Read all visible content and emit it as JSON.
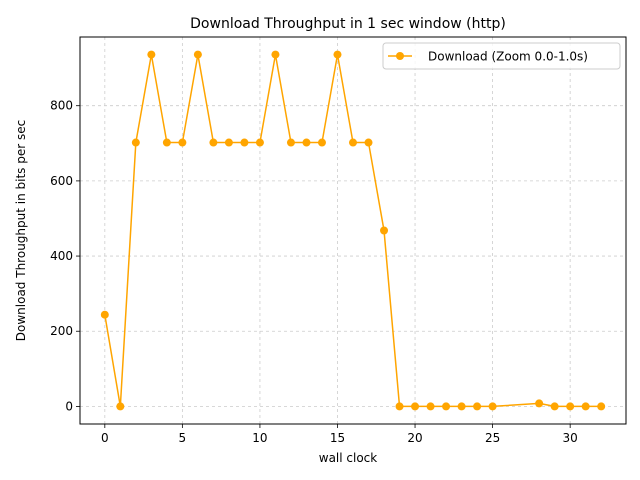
{
  "chart_data": {
    "type": "line",
    "title": "Download Throughput in 1 sec window (http)",
    "xlabel": "wall clock",
    "ylabel": "Download Throughput in bits per sec",
    "xlim": [
      -1.6,
      33.6
    ],
    "ylim": [
      -46.8,
      982.8
    ],
    "xticks": [
      0,
      5,
      10,
      15,
      20,
      25,
      30
    ],
    "yticks": [
      0,
      200,
      400,
      600,
      800
    ],
    "grid": true,
    "legend_position": "upper-right",
    "series": [
      {
        "name": "Download (Zoom 0.0-1.0s)",
        "color": "#FFA500",
        "marker": "circle",
        "x": [
          0,
          1,
          2,
          3,
          4,
          5,
          6,
          7,
          8,
          9,
          10,
          11,
          12,
          13,
          14,
          15,
          16,
          17,
          18,
          19,
          20,
          21,
          22,
          23,
          24,
          25,
          28,
          29,
          30,
          31,
          32
        ],
        "y": [
          244,
          0,
          702,
          936,
          702,
          702,
          936,
          702,
          702,
          702,
          702,
          936,
          702,
          702,
          702,
          936,
          702,
          702,
          468,
          0,
          0,
          0,
          0,
          0,
          0,
          0,
          8,
          0,
          0,
          0,
          0
        ]
      }
    ]
  }
}
